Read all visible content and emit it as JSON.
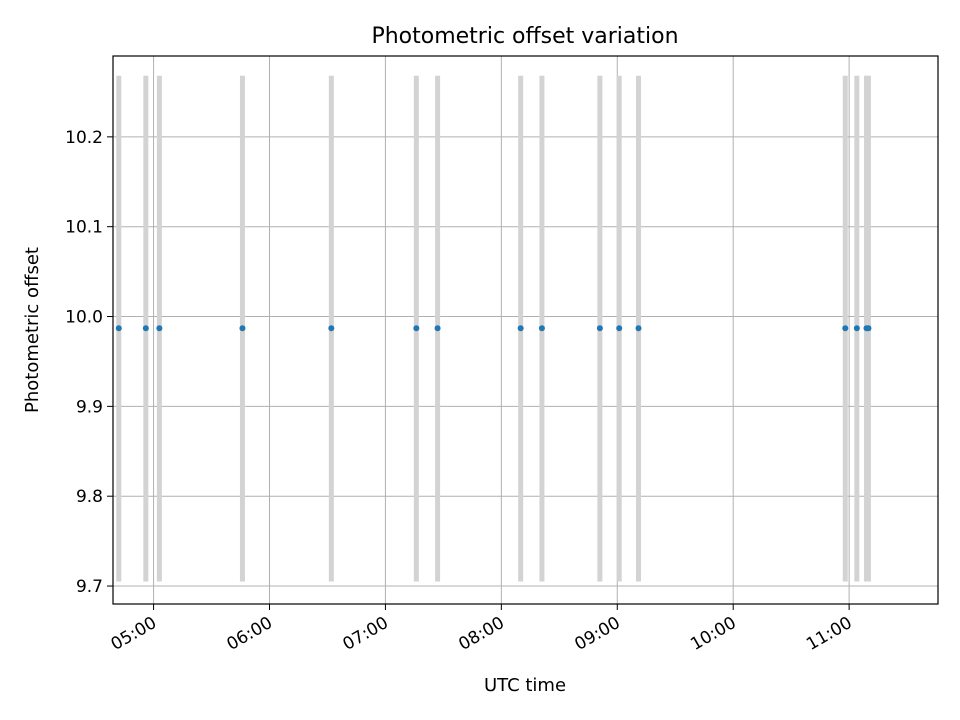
{
  "chart_data": {
    "type": "scatter",
    "title": "Photometric offset variation",
    "xlabel": "UTC time",
    "ylabel": "Photometric offset",
    "x_ticks": [
      "05:00",
      "06:00",
      "07:00",
      "08:00",
      "09:00",
      "10:00",
      "11:00"
    ],
    "y_ticks": [
      "9.7",
      "9.8",
      "9.9",
      "10.0",
      "10.1",
      "10.2"
    ],
    "xlim": [
      "04:39",
      "11:46"
    ],
    "ylim": [
      9.68,
      10.29
    ],
    "grid": true,
    "legend": "none",
    "point_color": "#1f77b4",
    "errorbar_color": "#d3d3d3",
    "series": [
      {
        "x": [
          "04:42",
          "04:56",
          "05:03",
          "05:46",
          "06:32",
          "07:16",
          "07:27",
          "08:10",
          "08:21",
          "08:51",
          "09:01",
          "09:11",
          "10:58",
          "11:04",
          "11:09",
          "11:10"
        ],
        "y": [
          9.987,
          9.987,
          9.987,
          9.987,
          9.987,
          9.987,
          9.987,
          9.987,
          9.987,
          9.987,
          9.987,
          9.987,
          9.987,
          9.987,
          9.987,
          9.987
        ],
        "error_low": [
          9.705,
          9.705,
          9.705,
          9.705,
          9.705,
          9.705,
          9.705,
          9.705,
          9.705,
          9.705,
          9.705,
          9.705,
          9.705,
          9.705,
          9.705,
          9.705
        ],
        "error_high": [
          10.268,
          10.268,
          10.268,
          10.268,
          10.268,
          10.268,
          10.268,
          10.268,
          10.268,
          10.268,
          10.268,
          10.268,
          10.268,
          10.268,
          10.268,
          10.268
        ]
      }
    ]
  }
}
